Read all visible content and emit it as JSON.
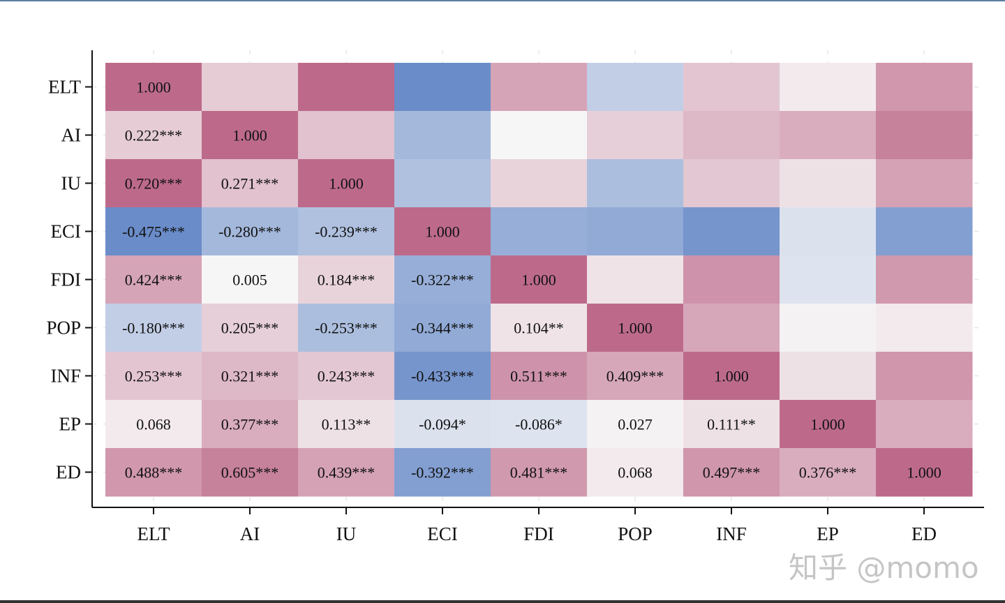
{
  "chart_data": {
    "type": "heatmap",
    "title": "",
    "xlabel": "",
    "ylabel": "",
    "variables": [
      "ELT",
      "AI",
      "IU",
      "ECI",
      "FDI",
      "POP",
      "INF",
      "EP",
      "ED"
    ],
    "values": [
      [
        1.0,
        0.222,
        0.72,
        -0.475,
        0.424,
        -0.18,
        0.253,
        0.068,
        0.488
      ],
      [
        0.222,
        1.0,
        0.271,
        -0.28,
        0.005,
        0.205,
        0.321,
        0.377,
        0.605
      ],
      [
        0.72,
        0.271,
        1.0,
        -0.239,
        0.184,
        -0.253,
        0.243,
        0.113,
        0.439
      ],
      [
        -0.475,
        -0.28,
        -0.239,
        1.0,
        -0.322,
        -0.344,
        -0.433,
        -0.094,
        -0.392
      ],
      [
        0.424,
        0.005,
        0.184,
        -0.322,
        1.0,
        0.104,
        0.511,
        -0.086,
        0.481
      ],
      [
        -0.18,
        0.205,
        -0.253,
        -0.344,
        0.104,
        1.0,
        0.409,
        0.027,
        0.068
      ],
      [
        0.253,
        0.321,
        0.243,
        -0.433,
        0.511,
        0.409,
        1.0,
        0.111,
        0.497
      ],
      [
        0.068,
        0.377,
        0.113,
        -0.094,
        -0.086,
        0.027,
        0.111,
        1.0,
        0.376
      ],
      [
        0.488,
        0.605,
        0.439,
        -0.392,
        0.481,
        0.068,
        0.497,
        0.376,
        1.0
      ]
    ],
    "lower_labels": [
      [
        "1.000"
      ],
      [
        "0.222***",
        "1.000"
      ],
      [
        "0.720***",
        "0.271***",
        "1.000"
      ],
      [
        "-0.475***",
        "-0.280***",
        "-0.239***",
        "1.000"
      ],
      [
        "0.424***",
        "0.005",
        "0.184***",
        "-0.322***",
        "1.000"
      ],
      [
        "-0.180***",
        "0.205***",
        "-0.253***",
        "-0.344***",
        "0.104**",
        "1.000"
      ],
      [
        "0.253***",
        "0.321***",
        "0.243***",
        "-0.433***",
        "0.511***",
        "0.409***",
        "1.000"
      ],
      [
        "0.068",
        "0.377***",
        "0.113**",
        "-0.094*",
        "-0.086*",
        "0.027",
        "0.111**",
        "1.000"
      ],
      [
        "0.488***",
        "0.605***",
        "0.439***",
        "-0.392***",
        "0.481***",
        "0.068",
        "0.497***",
        "0.376***",
        "1.000"
      ]
    ],
    "color_scale": {
      "negative": "#6a8cc9",
      "neutral": "#f7f7f7",
      "positive": "#bd6a8a",
      "diagonal": "#bd6a8a"
    },
    "grid": false,
    "legend": "none"
  },
  "watermark": "知乎 @momo"
}
